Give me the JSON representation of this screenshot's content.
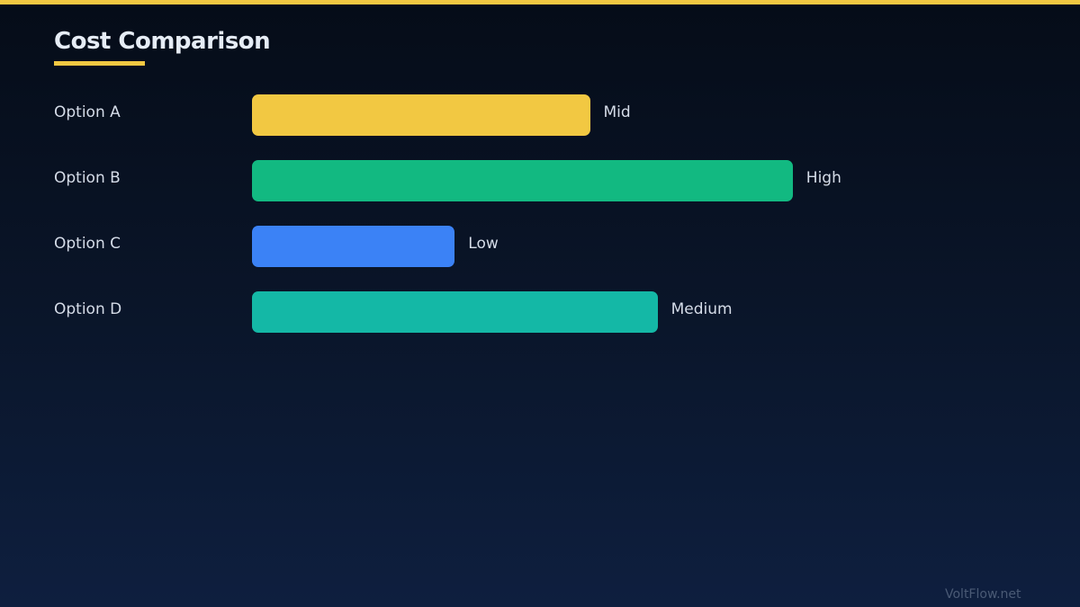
{
  "accent_color": "#f2c842",
  "chart_data": {
    "type": "bar",
    "orientation": "horizontal",
    "title": "Cost Comparison",
    "categories": [
      "Option A",
      "Option B",
      "Option C",
      "Option D"
    ],
    "series": [
      {
        "values": [
          50,
          80,
          30,
          60
        ],
        "labels": [
          "Mid",
          "High",
          "Low",
          "Medium"
        ],
        "colors": [
          "#f2c842",
          "#12b981",
          "#3b82f6",
          "#14b8a6"
        ]
      }
    ],
    "xlim": [
      0,
      100
    ],
    "grid": false
  },
  "footer": {
    "brand": "VoltFlow.net"
  }
}
